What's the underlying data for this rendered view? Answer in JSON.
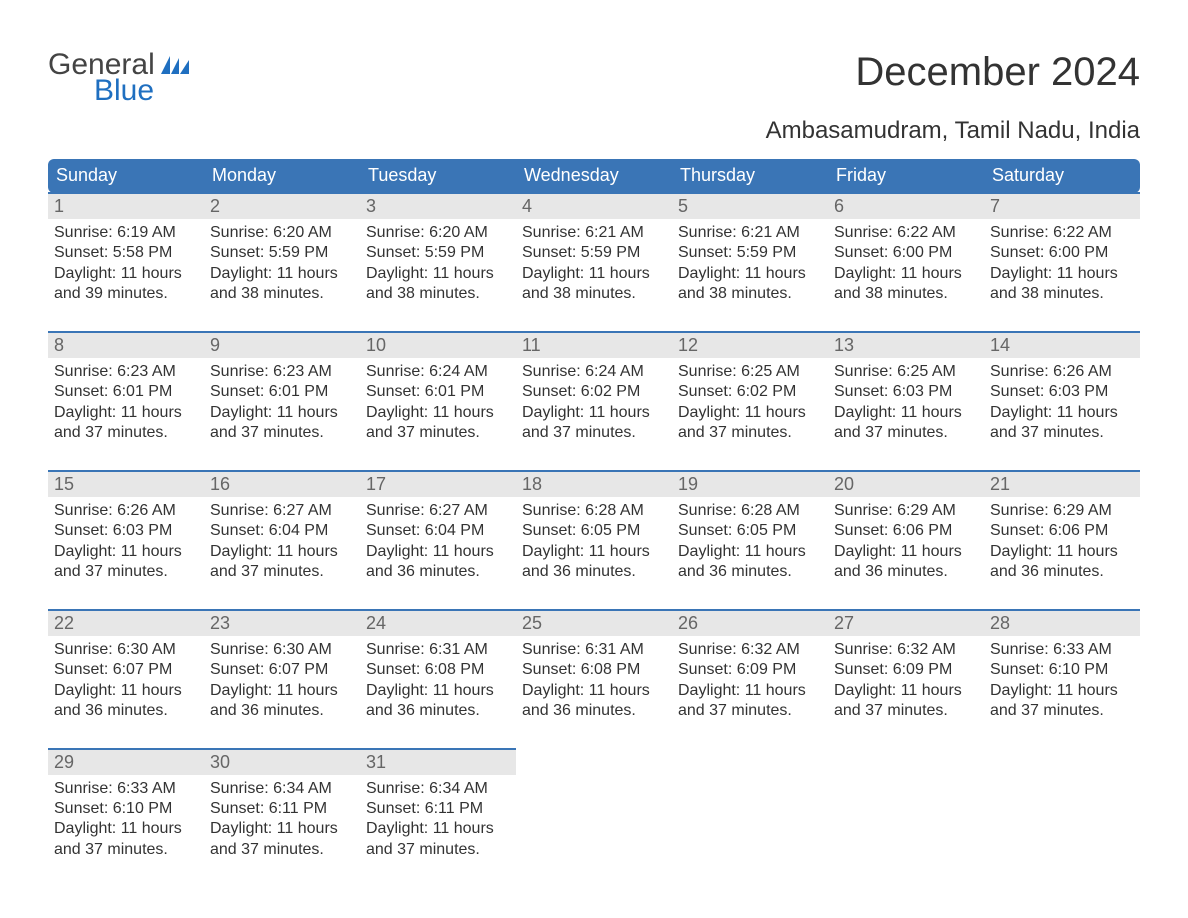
{
  "logo": {
    "word1": "General",
    "word2": "Blue",
    "flag_color": "#1f6fc0"
  },
  "header": {
    "title": "December 2024",
    "location": "Ambasamudram, Tamil Nadu, India"
  },
  "colors": {
    "header_bg": "#3a75b6",
    "header_text": "#ffffff",
    "day_band_bg": "#e7e7e7",
    "day_band_text": "#666666",
    "cell_border": "#3a75b6",
    "body_text": "#333333",
    "page_bg": "#ffffff"
  },
  "week_header": [
    "Sunday",
    "Monday",
    "Tuesday",
    "Wednesday",
    "Thursday",
    "Friday",
    "Saturday"
  ],
  "weeks": [
    [
      {
        "day": "1",
        "sunrise": "6:19 AM",
        "sunset": "5:58 PM",
        "daylight": "11 hours and 39 minutes."
      },
      {
        "day": "2",
        "sunrise": "6:20 AM",
        "sunset": "5:59 PM",
        "daylight": "11 hours and 38 minutes."
      },
      {
        "day": "3",
        "sunrise": "6:20 AM",
        "sunset": "5:59 PM",
        "daylight": "11 hours and 38 minutes."
      },
      {
        "day": "4",
        "sunrise": "6:21 AM",
        "sunset": "5:59 PM",
        "daylight": "11 hours and 38 minutes."
      },
      {
        "day": "5",
        "sunrise": "6:21 AM",
        "sunset": "5:59 PM",
        "daylight": "11 hours and 38 minutes."
      },
      {
        "day": "6",
        "sunrise": "6:22 AM",
        "sunset": "6:00 PM",
        "daylight": "11 hours and 38 minutes."
      },
      {
        "day": "7",
        "sunrise": "6:22 AM",
        "sunset": "6:00 PM",
        "daylight": "11 hours and 38 minutes."
      }
    ],
    [
      {
        "day": "8",
        "sunrise": "6:23 AM",
        "sunset": "6:01 PM",
        "daylight": "11 hours and 37 minutes."
      },
      {
        "day": "9",
        "sunrise": "6:23 AM",
        "sunset": "6:01 PM",
        "daylight": "11 hours and 37 minutes."
      },
      {
        "day": "10",
        "sunrise": "6:24 AM",
        "sunset": "6:01 PM",
        "daylight": "11 hours and 37 minutes."
      },
      {
        "day": "11",
        "sunrise": "6:24 AM",
        "sunset": "6:02 PM",
        "daylight": "11 hours and 37 minutes."
      },
      {
        "day": "12",
        "sunrise": "6:25 AM",
        "sunset": "6:02 PM",
        "daylight": "11 hours and 37 minutes."
      },
      {
        "day": "13",
        "sunrise": "6:25 AM",
        "sunset": "6:03 PM",
        "daylight": "11 hours and 37 minutes."
      },
      {
        "day": "14",
        "sunrise": "6:26 AM",
        "sunset": "6:03 PM",
        "daylight": "11 hours and 37 minutes."
      }
    ],
    [
      {
        "day": "15",
        "sunrise": "6:26 AM",
        "sunset": "6:03 PM",
        "daylight": "11 hours and 37 minutes."
      },
      {
        "day": "16",
        "sunrise": "6:27 AM",
        "sunset": "6:04 PM",
        "daylight": "11 hours and 37 minutes."
      },
      {
        "day": "17",
        "sunrise": "6:27 AM",
        "sunset": "6:04 PM",
        "daylight": "11 hours and 36 minutes."
      },
      {
        "day": "18",
        "sunrise": "6:28 AM",
        "sunset": "6:05 PM",
        "daylight": "11 hours and 36 minutes."
      },
      {
        "day": "19",
        "sunrise": "6:28 AM",
        "sunset": "6:05 PM",
        "daylight": "11 hours and 36 minutes."
      },
      {
        "day": "20",
        "sunrise": "6:29 AM",
        "sunset": "6:06 PM",
        "daylight": "11 hours and 36 minutes."
      },
      {
        "day": "21",
        "sunrise": "6:29 AM",
        "sunset": "6:06 PM",
        "daylight": "11 hours and 36 minutes."
      }
    ],
    [
      {
        "day": "22",
        "sunrise": "6:30 AM",
        "sunset": "6:07 PM",
        "daylight": "11 hours and 36 minutes."
      },
      {
        "day": "23",
        "sunrise": "6:30 AM",
        "sunset": "6:07 PM",
        "daylight": "11 hours and 36 minutes."
      },
      {
        "day": "24",
        "sunrise": "6:31 AM",
        "sunset": "6:08 PM",
        "daylight": "11 hours and 36 minutes."
      },
      {
        "day": "25",
        "sunrise": "6:31 AM",
        "sunset": "6:08 PM",
        "daylight": "11 hours and 36 minutes."
      },
      {
        "day": "26",
        "sunrise": "6:32 AM",
        "sunset": "6:09 PM",
        "daylight": "11 hours and 37 minutes."
      },
      {
        "day": "27",
        "sunrise": "6:32 AM",
        "sunset": "6:09 PM",
        "daylight": "11 hours and 37 minutes."
      },
      {
        "day": "28",
        "sunrise": "6:33 AM",
        "sunset": "6:10 PM",
        "daylight": "11 hours and 37 minutes."
      }
    ],
    [
      {
        "day": "29",
        "sunrise": "6:33 AM",
        "sunset": "6:10 PM",
        "daylight": "11 hours and 37 minutes."
      },
      {
        "day": "30",
        "sunrise": "6:34 AM",
        "sunset": "6:11 PM",
        "daylight": "11 hours and 37 minutes."
      },
      {
        "day": "31",
        "sunrise": "6:34 AM",
        "sunset": "6:11 PM",
        "daylight": "11 hours and 37 minutes."
      },
      null,
      null,
      null,
      null
    ]
  ],
  "labels": {
    "sunrise_prefix": "Sunrise: ",
    "sunset_prefix": "Sunset: ",
    "daylight_prefix": "Daylight: "
  }
}
